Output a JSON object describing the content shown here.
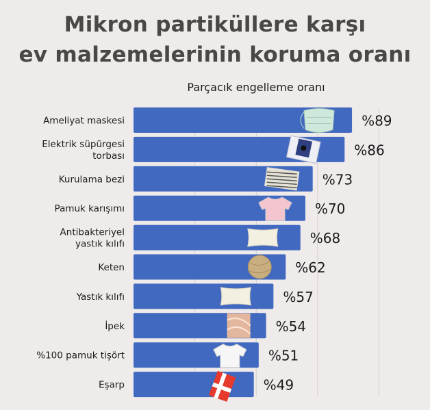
{
  "chart_data": {
    "type": "bar",
    "orientation": "horizontal",
    "title": "Mikron partiküllere karşı ev malzemelerinin koruma oranı",
    "title_lines": [
      "Mikron partiküllere karşı",
      "ev malzemelerinin koruma oranı"
    ],
    "subtitle": "Parçacık engelleme oranı",
    "categories": [
      [
        "Ameliyat maskesi"
      ],
      [
        "Elektrik süpürgesi",
        "torbası"
      ],
      [
        "Kurulama bezi"
      ],
      [
        "Pamuk karışımı"
      ],
      [
        "Antibakteriyel",
        "yastık kılıfı"
      ],
      [
        "Keten"
      ],
      [
        "Yastık kılıfı"
      ],
      [
        "İpek"
      ],
      [
        "%100 pamuk tişört"
      ],
      [
        "Eşarp"
      ]
    ],
    "values": [
      89,
      86,
      73,
      70,
      68,
      62,
      57,
      54,
      51,
      49
    ],
    "value_labels": [
      "%89",
      "%86",
      "%73",
      "%70",
      "%68",
      "%62",
      "%57",
      "%54",
      "%51",
      "%49"
    ],
    "icons": [
      "surgical-mask-icon",
      "vacuum-bag-icon",
      "dish-towel-icon",
      "pink-tshirt-icon",
      "pillow-icon",
      "linen-ball-icon",
      "pillow-icon",
      "silk-fabric-icon",
      "white-tshirt-icon",
      "scarf-icon"
    ],
    "xlim": [
      0,
      100
    ],
    "grid": true,
    "bar_color": "#4169c0",
    "background": "#f0ebeb"
  }
}
